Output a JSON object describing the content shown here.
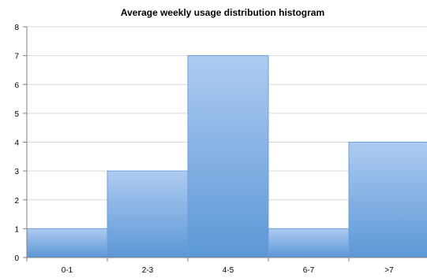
{
  "chart_data": {
    "type": "bar",
    "title": "Average weekly usage distribution histogram",
    "xlabel": "",
    "ylabel": "",
    "categories": [
      "0-1",
      "2-3",
      "4-5",
      "6-7",
      ">7"
    ],
    "values": [
      1,
      3,
      7,
      1,
      4
    ],
    "ylim": [
      0,
      8
    ],
    "yticks": [
      "0",
      "1",
      "2",
      "3",
      "4",
      "5",
      "6",
      "7",
      "8"
    ],
    "grid": true,
    "legend": "none",
    "colors": {
      "bar_top": "#aecbf1",
      "bar_bottom": "#5b97d6",
      "bar_edge": "#6d9fd6"
    }
  }
}
